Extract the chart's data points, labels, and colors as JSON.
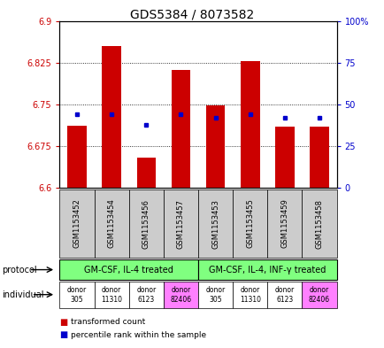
{
  "title": "GDS5384 / 8073582",
  "samples": [
    "GSM1153452",
    "GSM1153454",
    "GSM1153456",
    "GSM1153457",
    "GSM1153453",
    "GSM1153455",
    "GSM1153459",
    "GSM1153458"
  ],
  "red_values": [
    6.712,
    6.855,
    6.655,
    6.812,
    6.748,
    6.828,
    6.71,
    6.71
  ],
  "blue_pct": [
    44,
    44,
    38,
    44,
    42,
    44,
    42,
    42
  ],
  "ylim_left": [
    6.6,
    6.9
  ],
  "ylim_right": [
    0,
    100
  ],
  "yticks_left": [
    6.6,
    6.675,
    6.75,
    6.825,
    6.9
  ],
  "yticks_right": [
    0,
    25,
    50,
    75,
    100
  ],
  "ytick_labels_left": [
    "6.6",
    "6.675",
    "6.75",
    "6.825",
    "6.9"
  ],
  "ytick_labels_right": [
    "0",
    "25",
    "50",
    "75",
    "100%"
  ],
  "baseline": 6.6,
  "protocol1_label": "GM-CSF, IL-4 treated",
  "protocol2_label": "GM-CSF, IL-4, INF-γ treated",
  "individuals": [
    "donor\n305",
    "donor\n11310",
    "donor\n6123",
    "donor\n82406",
    "donor\n305",
    "donor\n11310",
    "donor\n6123",
    "donor\n82406"
  ],
  "individual_colors": [
    "#ffffff",
    "#ffffff",
    "#ffffff",
    "#ff80ff",
    "#ffffff",
    "#ffffff",
    "#ffffff",
    "#ff80ff"
  ],
  "protocol_color": "#80ff80",
  "bar_color": "#cc0000",
  "dot_color": "#0000cc",
  "legend_red": "transformed count",
  "legend_blue": "percentile rank within the sample",
  "sample_bg_color": "#cccccc"
}
